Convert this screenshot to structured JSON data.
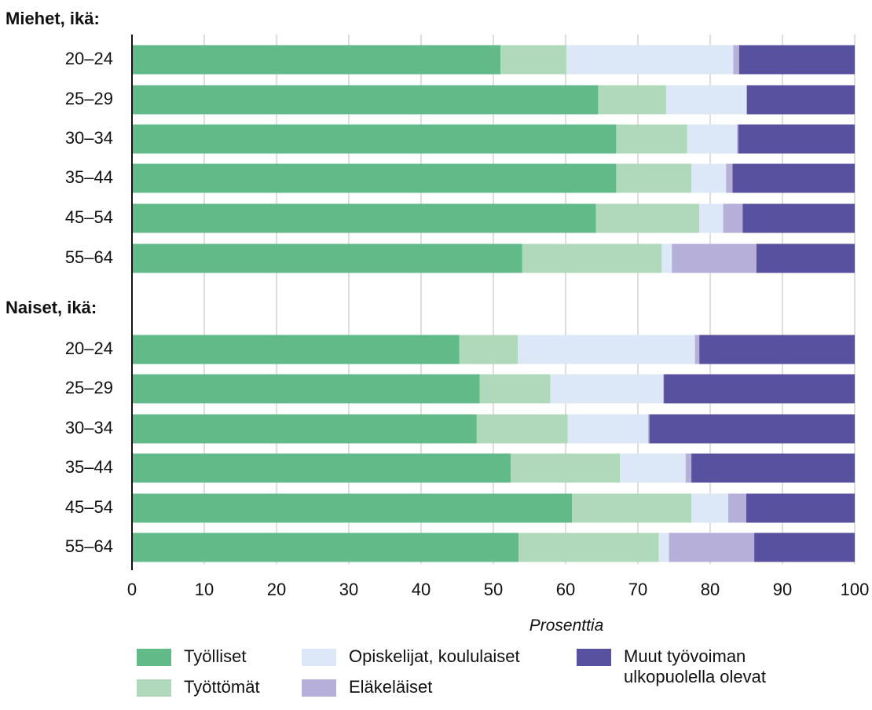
{
  "chart_data": {
    "type": "bar",
    "orientation": "horizontal",
    "stacked": true,
    "xlabel": "Prosenttia",
    "xlim": [
      0,
      100
    ],
    "xticks": [
      "0",
      "10",
      "20",
      "30",
      "40",
      "50",
      "60",
      "70",
      "80",
      "90",
      "100"
    ],
    "grid": "vertical",
    "legend_placement": "bottom",
    "groups": [
      {
        "title": "Miehet, ikä:",
        "categories": [
          "20–24",
          "25–29",
          "30–34",
          "35–44",
          "45–54",
          "55–64"
        ]
      },
      {
        "title": "Naiset, ikä:",
        "categories": [
          "20–24",
          "25–29",
          "30–34",
          "35–44",
          "45–54",
          "55–64"
        ]
      }
    ],
    "series": [
      {
        "name": "Työlliset",
        "color": "#62ba88",
        "values": [
          [
            51.0,
            64.5,
            67.0,
            67.0,
            64.2,
            54.0
          ],
          [
            45.3,
            48.1,
            47.7,
            52.4,
            60.9,
            53.5
          ]
        ]
      },
      {
        "name": "Työttömät",
        "color": "#b0d8bb",
        "values": [
          [
            9.1,
            9.4,
            9.8,
            10.4,
            14.3,
            19.3
          ],
          [
            8.1,
            9.8,
            12.6,
            15.1,
            16.5,
            19.4
          ]
        ]
      },
      {
        "name": "Opiskelijat, koululaiset",
        "color": "#dce8f7",
        "values": [
          [
            23.1,
            11.1,
            6.9,
            4.8,
            3.3,
            1.4
          ],
          [
            24.5,
            15.6,
            11.1,
            9.1,
            5.1,
            1.4
          ]
        ]
      },
      {
        "name": "Eläkeläiset",
        "color": "#b6afd9",
        "values": [
          [
            0.8,
            0.1,
            0.2,
            0.9,
            2.7,
            11.7
          ],
          [
            0.6,
            0.1,
            0.2,
            0.8,
            2.5,
            11.8
          ]
        ]
      },
      {
        "name": "Muut työvoiman ulkopuolella olevat",
        "color": "#5751a0",
        "values": [
          [
            16.0,
            14.9,
            16.1,
            16.9,
            15.5,
            13.6
          ],
          [
            21.5,
            26.4,
            28.4,
            22.6,
            15.0,
            13.9
          ]
        ]
      }
    ],
    "legend": [
      {
        "name_lines": [
          "Työlliset"
        ],
        "color": "#62ba88"
      },
      {
        "name_lines": [
          "Työttömät"
        ],
        "color": "#b0d8bb"
      },
      {
        "name_lines": [
          "Opiskelijat, koululaiset"
        ],
        "color": "#dce8f7"
      },
      {
        "name_lines": [
          "Eläkeläiset"
        ],
        "color": "#b6afd9"
      },
      {
        "name_lines": [
          "Muut työvoiman",
          "ulkopuolella olevat"
        ],
        "color": "#5751a0"
      }
    ]
  }
}
